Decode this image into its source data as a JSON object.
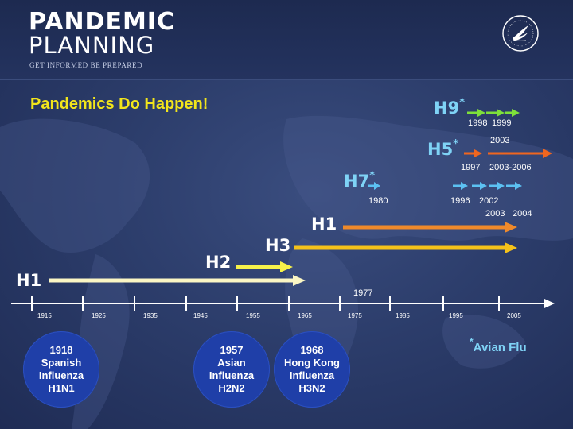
{
  "header": {
    "logo_line1": "PANDEMIC",
    "logo_line2": "PLANNING",
    "tagline": "GET INFORMED   BE PREPARED"
  },
  "title": "Pandemics Do Happen!",
  "colors": {
    "title": "#f2e51b",
    "h9_arrow": "#7ee03a",
    "h5_arrow": "#f0661f",
    "h7_arrow": "#5cc1f2",
    "h1_recent": "#f08a2a",
    "h3": "#f5c21a",
    "h2": "#f7f24a",
    "h1_1918": "#fbf6c4",
    "circle": "#1f3fa8",
    "avian_note": "#7fd3f6"
  },
  "subtypes": {
    "h9": {
      "label": "H9",
      "asterisk": "*",
      "years": [
        "1998",
        "1999"
      ]
    },
    "h5": {
      "label": "H5",
      "asterisk": "*",
      "years": [
        "2003",
        "1997",
        "2003-2006"
      ]
    },
    "h7": {
      "label": "H7",
      "asterisk": "*",
      "years": [
        "1980",
        "1996",
        "2002",
        "2003",
        "2004"
      ]
    },
    "h1_recent": {
      "label": "H1",
      "year": "1977"
    },
    "h3": {
      "label": "H3"
    },
    "h2": {
      "label": "H2"
    },
    "h1_1918": {
      "label": "H1"
    }
  },
  "timeline": {
    "ticks": [
      "1915",
      "1925",
      "1935",
      "1945",
      "1955",
      "1965",
      "1975",
      "1985",
      "1995",
      "2005"
    ]
  },
  "pandemics": [
    {
      "year": "1918",
      "line2": "Spanish",
      "line3": "Influenza",
      "line4": "H1N1"
    },
    {
      "year": "1957",
      "line2": "Asian",
      "line3": "Influenza",
      "line4": "H2N2"
    },
    {
      "year": "1968",
      "line2": "Hong Kong",
      "line3": "Influenza",
      "line4": "H3N2"
    }
  ],
  "footnote": {
    "asterisk": "*",
    "text": "Avian Flu"
  }
}
